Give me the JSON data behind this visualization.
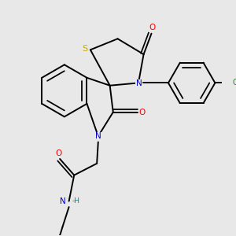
{
  "background_color": "#e8e8e8",
  "atom_colors": {
    "C": "#000000",
    "N": "#0000cc",
    "O": "#ff0000",
    "S": "#ccaa00",
    "Cl": "#228B22",
    "H": "#008888"
  },
  "bond_color": "#000000",
  "bond_lw": 1.4,
  "figsize": [
    3.0,
    3.0
  ],
  "dpi": 100,
  "xlim": [
    -1.5,
    1.8
  ],
  "ylim": [
    -2.0,
    1.6
  ],
  "label_fontsize": 7.5,
  "label_fs_cl": 7.0
}
